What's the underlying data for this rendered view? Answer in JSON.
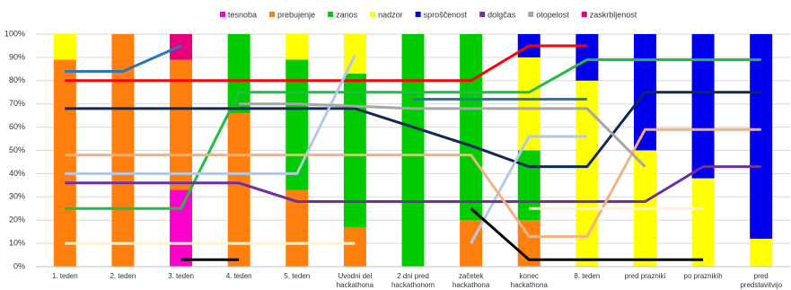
{
  "chart_data": {
    "type": "bar",
    "stacked": true,
    "categories": [
      "1. teden",
      "2. teden",
      "3. teden",
      "4. teden",
      "5. teden",
      "Uvodni del hackathona",
      "2 dni pred hackathonom",
      "začetek hackathona",
      "konec hackathona",
      "8. teden",
      "pred prazniki",
      "po praznikih",
      "pred predstavitvijo"
    ],
    "series": [
      {
        "name": "tesnoba",
        "color": "#ff00cc",
        "values": [
          null,
          null,
          33,
          null,
          null,
          null,
          null,
          null,
          null,
          null,
          null,
          null,
          null
        ]
      },
      {
        "name": "prebujenje",
        "color": "#ff7f0e",
        "values": [
          89,
          100,
          56,
          66,
          33,
          17,
          null,
          20,
          20,
          null,
          null,
          null,
          null
        ]
      },
      {
        "name": "zanos",
        "color": "#00cc00",
        "values": [
          null,
          null,
          null,
          34,
          56,
          66,
          100,
          80,
          30,
          null,
          null,
          null,
          null
        ]
      },
      {
        "name": "nadzor",
        "color": "#ffff00",
        "values": [
          11,
          null,
          null,
          null,
          11,
          17,
          null,
          null,
          40,
          80,
          50,
          38,
          12
        ]
      },
      {
        "name": "sproščenost",
        "color": "#0000ee",
        "values": [
          null,
          null,
          null,
          null,
          null,
          null,
          null,
          null,
          10,
          20,
          50,
          62,
          88
        ]
      },
      {
        "name": "dolgčas",
        "color": "#7030a0",
        "values": [
          null,
          null,
          null,
          null,
          null,
          null,
          null,
          null,
          null,
          null,
          null,
          null,
          null
        ]
      },
      {
        "name": "otopelost",
        "color": "#a6a6a6",
        "values": [
          null,
          null,
          null,
          null,
          null,
          null,
          null,
          null,
          null,
          null,
          null,
          null,
          null
        ]
      },
      {
        "name": "zaskrbljenost",
        "color": "#e6007e",
        "values": [
          null,
          null,
          11,
          null,
          null,
          null,
          null,
          null,
          null,
          null,
          null,
          null,
          null
        ]
      }
    ],
    "lines": [
      {
        "color": "#ff0000",
        "values": [
          80,
          80,
          80,
          80,
          80,
          80,
          80,
          80,
          95,
          95,
          null,
          null,
          null
        ]
      },
      {
        "color": "#22bb44",
        "values": [
          25,
          25,
          25,
          75,
          75,
          75,
          75,
          75,
          75,
          89,
          89,
          89,
          89
        ]
      },
      {
        "color": "#0f2a5a",
        "values": [
          68,
          68,
          68,
          68,
          68,
          68,
          60,
          52,
          43,
          43,
          75,
          75,
          75
        ]
      },
      {
        "color": "#2e75b6",
        "values": [
          84,
          84,
          95,
          null,
          null,
          null,
          72,
          72,
          72,
          72,
          null,
          null,
          null
        ]
      },
      {
        "color": "#b4c7e7",
        "values": [
          40,
          40,
          40,
          40,
          40,
          91,
          null,
          10,
          56,
          56,
          null,
          null,
          null
        ]
      },
      {
        "color": "#7030a0",
        "values": [
          36,
          36,
          36,
          36,
          28,
          28,
          28,
          28,
          28,
          28,
          28,
          43,
          43
        ]
      },
      {
        "color": "#f4b183",
        "values": [
          48,
          48,
          48,
          48,
          48,
          48,
          48,
          48,
          13,
          13,
          59,
          59,
          59
        ]
      },
      {
        "color": "#a6a6a6",
        "values": [
          null,
          null,
          null,
          70,
          70,
          69,
          68,
          68,
          68,
          68,
          43,
          null,
          null
        ]
      },
      {
        "color": "#000000",
        "values": [
          null,
          null,
          3,
          3,
          null,
          null,
          null,
          25,
          3,
          3,
          3,
          3,
          null
        ]
      },
      {
        "color": "#fff2cc",
        "values": [
          10,
          10,
          10,
          10,
          10,
          10,
          null,
          null,
          25,
          25,
          25,
          25,
          null
        ]
      }
    ],
    "ylim": [
      0,
      100
    ],
    "yticks": [
      {
        "value": 0,
        "label": "0%"
      },
      {
        "value": 10,
        "label": "10%"
      },
      {
        "value": 20,
        "label": "20%"
      },
      {
        "value": 30,
        "label": "30%"
      },
      {
        "value": 40,
        "label": "40%"
      },
      {
        "value": 50,
        "label": "50%"
      },
      {
        "value": 60,
        "label": "60%"
      },
      {
        "value": 70,
        "label": "70%"
      },
      {
        "value": 80,
        "label": "80%"
      },
      {
        "value": 90,
        "label": "90%"
      },
      {
        "value": 100,
        "label": "100%"
      }
    ],
    "grid": true
  }
}
